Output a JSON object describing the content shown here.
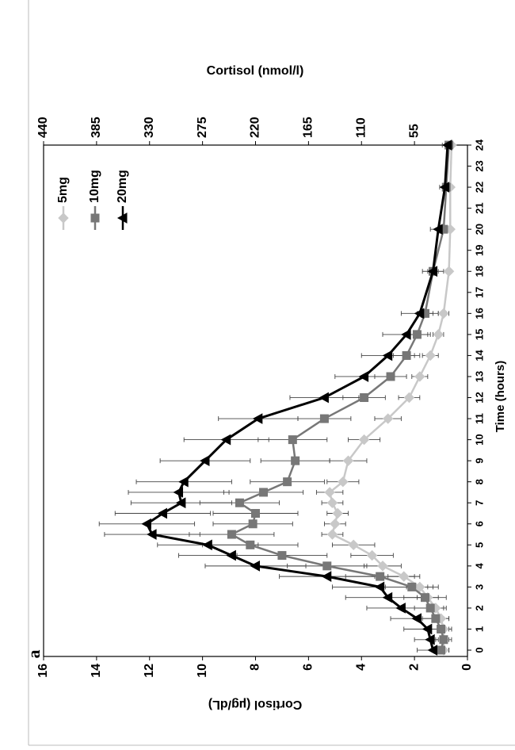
{
  "chart_data": {
    "type": "line",
    "panel_label": "a",
    "xlabel": "Time (hours)",
    "ylabel": "Cortisol (µg/dL)",
    "y2label": "Cortisol (nmol/l)",
    "x": [
      0,
      0.5,
      1,
      1.5,
      2,
      2.5,
      3,
      3.5,
      4,
      4.5,
      5,
      5.5,
      6,
      6.5,
      7,
      7.5,
      8,
      9,
      10,
      11,
      12,
      13,
      14,
      15,
      16,
      18,
      20,
      22,
      24
    ],
    "xlim": [
      -0.3,
      24
    ],
    "xticks": [
      0,
      1,
      2,
      3,
      4,
      5,
      6,
      7,
      8,
      9,
      10,
      11,
      12,
      13,
      14,
      15,
      16,
      17,
      18,
      19,
      20,
      21,
      22,
      23,
      24
    ],
    "ylim": [
      0,
      16
    ],
    "yticks": [
      0,
      2,
      4,
      6,
      8,
      10,
      12,
      14,
      16
    ],
    "y2lim": [
      0,
      440
    ],
    "y2ticks": [
      55,
      110,
      165,
      220,
      275,
      330,
      385,
      440
    ],
    "grid": false,
    "legend": "upper right",
    "series": [
      {
        "name": "5mg",
        "color": "#c8c8c8",
        "marker": "diamond",
        "values": [
          0.9,
          0.9,
          0.9,
          1.0,
          1.2,
          1.5,
          1.8,
          2.4,
          3.2,
          3.6,
          4.3,
          5.1,
          5.0,
          4.9,
          5.1,
          5.2,
          4.7,
          4.5,
          3.9,
          3.0,
          2.2,
          1.8,
          1.4,
          1.1,
          0.9,
          0.7,
          0.65,
          0.65,
          0.6
        ],
        "errors": [
          0.2,
          0.2,
          0.2,
          0.3,
          0.3,
          0.4,
          0.5,
          0.6,
          0.7,
          0.8,
          0.8,
          0.4,
          0.4,
          0.4,
          0.4,
          0.5,
          0.6,
          0.7,
          0.6,
          0.5,
          0.4,
          0.3,
          0.3,
          0.2,
          0.2,
          0.1,
          0.1,
          0.1,
          0.1
        ]
      },
      {
        "name": "10mg",
        "color": "#777777",
        "marker": "square",
        "values": [
          1.0,
          0.9,
          1.0,
          1.2,
          1.4,
          1.6,
          2.1,
          3.3,
          5.3,
          7.0,
          8.2,
          8.9,
          8.1,
          8.0,
          8.6,
          7.7,
          6.8,
          6.5,
          6.6,
          5.4,
          3.9,
          2.9,
          2.3,
          1.9,
          1.6,
          1.3,
          0.9,
          0.8,
          0.7
        ],
        "errors": [
          0.3,
          0.3,
          0.4,
          0.5,
          0.6,
          0.8,
          1.0,
          1.3,
          1.5,
          1.7,
          1.8,
          1.6,
          1.5,
          1.6,
          1.5,
          1.5,
          1.4,
          1.3,
          1.3,
          1.0,
          0.8,
          0.6,
          0.5,
          0.4,
          0.3,
          0.2,
          0.2,
          0.1,
          0.1
        ]
      },
      {
        "name": "20mg",
        "color": "#000000",
        "marker": "triangle",
        "values": [
          1.3,
          1.4,
          1.5,
          1.9,
          2.5,
          3.0,
          3.3,
          5.3,
          8.0,
          8.9,
          9.8,
          11.9,
          12.1,
          11.5,
          10.8,
          10.9,
          10.7,
          9.9,
          9.1,
          7.9,
          5.4,
          3.9,
          3.0,
          2.3,
          1.8,
          1.3,
          1.1,
          0.85,
          0.75
        ],
        "errors": [
          0.6,
          0.6,
          0.9,
          1.0,
          1.3,
          1.6,
          1.8,
          1.8,
          1.9,
          2.0,
          1.9,
          1.8,
          1.8,
          1.8,
          1.9,
          1.9,
          1.8,
          1.7,
          1.6,
          1.5,
          1.3,
          1.1,
          1.0,
          0.9,
          0.7,
          0.4,
          0.3,
          0.2,
          0.2
        ]
      }
    ]
  }
}
